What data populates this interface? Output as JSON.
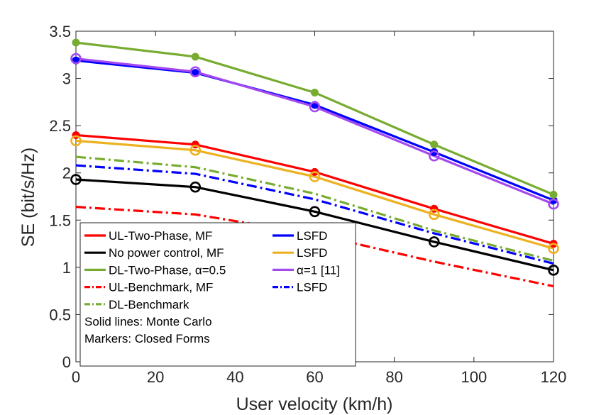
{
  "chart_data": {
    "type": "line",
    "xlabel": "User velocity (km/h)",
    "ylabel": "SE (bit/s/Hz)",
    "xlim": [
      0,
      120
    ],
    "ylim": [
      0,
      3.5
    ],
    "xticks": [
      "0",
      "20",
      "40",
      "60",
      "80",
      "100",
      "120"
    ],
    "yticks": [
      "0",
      "0.5",
      "1",
      "1.5",
      "2",
      "2.5",
      "3",
      "3.5"
    ],
    "x": [
      0,
      30,
      60,
      90,
      120
    ],
    "series": [
      {
        "name": "UL-Two-Phase, MF",
        "color": "#ff0000",
        "style": "solid",
        "marker": "dot",
        "values": [
          2.4,
          2.3,
          2.01,
          1.62,
          1.25
        ]
      },
      {
        "name": "UL-Two-Phase, LSFD",
        "color": "#0000ff",
        "style": "solid",
        "marker": "dot",
        "values": [
          3.19,
          3.06,
          2.72,
          2.22,
          1.71
        ]
      },
      {
        "name": "No power control, MF",
        "color": "#000000",
        "style": "solid",
        "marker": "circle",
        "values": [
          1.93,
          1.85,
          1.59,
          1.27,
          0.97
        ]
      },
      {
        "name": "No power control, LSFD",
        "color": "#edb120",
        "style": "solid",
        "marker": "circle",
        "values": [
          2.34,
          2.24,
          1.96,
          1.56,
          1.2
        ]
      },
      {
        "name": "DL-Two-Phase, α=0.5",
        "color": "#77ac30",
        "style": "solid",
        "marker": "dot",
        "values": [
          3.38,
          3.23,
          2.85,
          2.3,
          1.77
        ]
      },
      {
        "name": "DL-Two-Phase, α=1 [11]",
        "color": "#a349ef",
        "style": "solid",
        "marker": "circle",
        "values": [
          3.21,
          3.07,
          2.7,
          2.18,
          1.67
        ]
      },
      {
        "name": "UL-Benchmark, MF",
        "color": "#ff0000",
        "style": "dashdot",
        "marker": "none",
        "values": [
          1.64,
          1.56,
          1.35,
          1.06,
          0.8
        ]
      },
      {
        "name": "UL-Benchmark, LSFD",
        "color": "#0000ff",
        "style": "dashdot",
        "marker": "none",
        "values": [
          2.08,
          1.99,
          1.72,
          1.36,
          1.04
        ]
      },
      {
        "name": "DL-Benchmark",
        "color": "#77ac30",
        "style": "dashdot",
        "marker": "none",
        "values": [
          2.17,
          2.06,
          1.78,
          1.39,
          1.07
        ]
      }
    ],
    "legend": {
      "position": "bottom-left",
      "rows": [
        {
          "left": "UL-Two-Phase, MF",
          "left_color": "#ff0000",
          "left_style": "solid",
          "right": "LSFD",
          "right_color": "#0000ff",
          "right_style": "solid"
        },
        {
          "left": "No power control, MF",
          "left_color": "#000000",
          "left_style": "solid",
          "right": "LSFD",
          "right_color": "#edb120",
          "right_style": "solid"
        },
        {
          "left": "DL-Two-Phase, α=0.5",
          "left_color": "#77ac30",
          "left_style": "solid",
          "right": "α=1 [11]",
          "right_color": "#a349ef",
          "right_style": "solid"
        },
        {
          "left": "UL-Benchmark, MF",
          "left_color": "#ff0000",
          "left_style": "dashdot",
          "right": "LSFD",
          "right_color": "#0000ff",
          "right_style": "dashdot"
        },
        {
          "left": "DL-Benchmark",
          "left_color": "#77ac30",
          "left_style": "dashdot",
          "right": "",
          "right_color": "",
          "right_style": ""
        }
      ],
      "notes": [
        "Solid lines: Monte Carlo",
        "Markers: Closed Forms"
      ]
    }
  }
}
